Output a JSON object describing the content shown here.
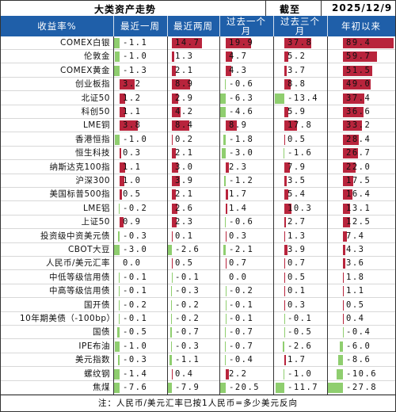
{
  "title": "大类资产走势",
  "date_label": "截至",
  "date_value": "2025/12/9",
  "headers": [
    "收益率%",
    "最近一周",
    "最近两周",
    "过去一个月",
    "过去三个月",
    "年初以来"
  ],
  "colors": {
    "header_bg": "#1f5fa9",
    "positive": "#b8243c",
    "negative": "#8fce6f"
  },
  "rows": [
    {
      "label": "COMEX白银",
      "values": [
        -1.1,
        14.7,
        19.9,
        37.8,
        89.4
      ]
    },
    {
      "label": "伦敦金",
      "values": [
        -1.0,
        1.3,
        4.7,
        5.2,
        59.7
      ]
    },
    {
      "label": "COMEX黄金",
      "values": [
        -1.3,
        2.1,
        4.3,
        3.7,
        51.5
      ]
    },
    {
      "label": "创业板指",
      "values": [
        3.2,
        8.9,
        -0.6,
        8.8,
        49.0
      ]
    },
    {
      "label": "北证50",
      "values": [
        1.2,
        2.9,
        -6.3,
        -13.4,
        37.4
      ]
    },
    {
      "label": "科创50",
      "values": [
        1.1,
        4.2,
        -4.6,
        5.9,
        36.6
      ]
    },
    {
      "label": "LME铜",
      "values": [
        3.8,
        8.4,
        8.9,
        17.8,
        33.2
      ]
    },
    {
      "label": "香港恒指",
      "values": [
        -1.0,
        0.2,
        -1.8,
        0.5,
        28.4
      ]
    },
    {
      "label": "恒生科技",
      "values": [
        0.3,
        2.1,
        -3.0,
        -1.6,
        26.7
      ]
    },
    {
      "label": "纳斯达克100指",
      "values": [
        1.1,
        3.0,
        2.3,
        7.9,
        22.0
      ]
    },
    {
      "label": "沪深300",
      "values": [
        1.0,
        3.9,
        -1.2,
        3.5,
        17.5
      ]
    },
    {
      "label": "美国标普500指",
      "values": [
        0.5,
        2.1,
        1.7,
        5.4,
        16.4
      ]
    },
    {
      "label": "LME铝",
      "values": [
        -0.2,
        2.6,
        1.4,
        10.3,
        13.1
      ]
    },
    {
      "label": "上证50",
      "values": [
        0.9,
        2.3,
        -0.6,
        2.7,
        12.5
      ]
    },
    {
      "label": "投资级中资美元债",
      "values": [
        -0.3,
        0.1,
        0.3,
        1.3,
        7.4
      ]
    },
    {
      "label": "CBOT大豆",
      "values": [
        -3.0,
        -2.6,
        -2.1,
        3.9,
        4.3
      ]
    },
    {
      "label": "人民币/美元汇率",
      "values": [
        0.0,
        0.5,
        0.7,
        0.7,
        3.6
      ]
    },
    {
      "label": "中低等级信用债",
      "values": [
        -0.1,
        -0.1,
        0.0,
        0.5,
        1.8
      ]
    },
    {
      "label": "中高等级信用债",
      "values": [
        -0.1,
        -0.3,
        -0.2,
        0.1,
        1.1
      ]
    },
    {
      "label": "国开债",
      "values": [
        -0.2,
        -0.2,
        -0.1,
        0.3,
        0.5
      ]
    },
    {
      "label": "10年期美债（-100bp）",
      "values": [
        -0.1,
        -0.2,
        -0.1,
        -0.1,
        0.4
      ]
    },
    {
      "label": "国债",
      "values": [
        -0.5,
        -0.7,
        -0.7,
        -0.5,
        -0.4
      ]
    },
    {
      "label": "IPE布油",
      "values": [
        -1.0,
        -0.3,
        -0.7,
        -2.6,
        -6.0
      ]
    },
    {
      "label": "美元指数",
      "values": [
        -0.3,
        -1.1,
        -0.4,
        1.7,
        -8.6
      ]
    },
    {
      "label": "螺纹钢",
      "values": [
        -1.4,
        0.4,
        2.2,
        -1.0,
        -10.6
      ]
    },
    {
      "label": "焦煤",
      "values": [
        -7.6,
        -7.9,
        -20.5,
        -11.7,
        -27.8
      ]
    }
  ],
  "footer": "注：人民币/美元汇率已按1人民币=多少美元反向"
}
